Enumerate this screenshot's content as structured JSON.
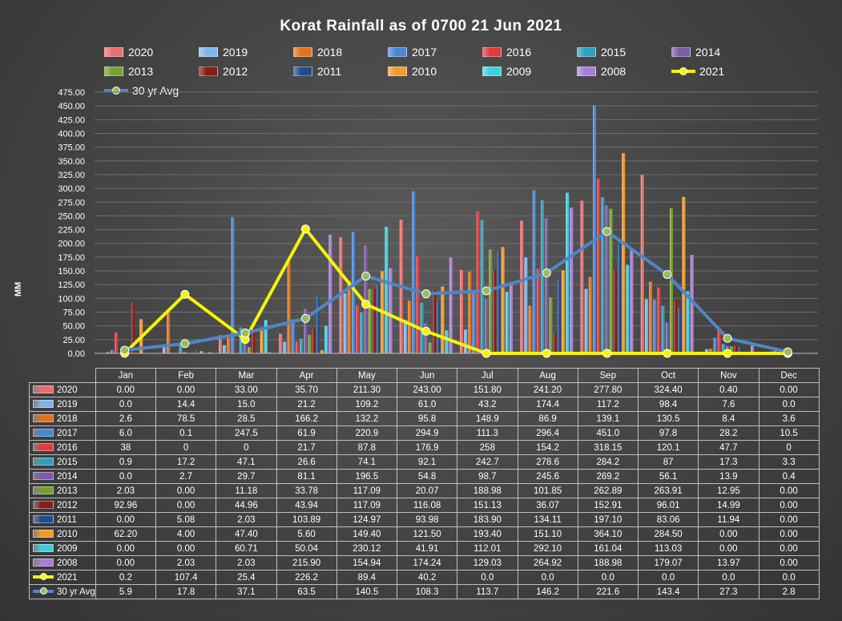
{
  "chart_data": {
    "type": "bar",
    "title": "Korat Rainfall as of 0700 21 Jun 2021",
    "ylabel": "MM",
    "xlabel": "",
    "ylim": [
      0,
      475
    ],
    "yticks": [
      "475.00",
      "450.00",
      "425.00",
      "400.00",
      "375.00",
      "350.00",
      "325.00",
      "300.00",
      "275.00",
      "250.00",
      "225.00",
      "200.00",
      "175.00",
      "150.00",
      "125.00",
      "100.00",
      "75.00",
      "50.00",
      "25.00",
      "0.00"
    ],
    "categories": [
      "Jan",
      "Feb",
      "Mar",
      "Apr",
      "May",
      "Jun",
      "Jul",
      "Aug",
      "Sep",
      "Oct",
      "Nov",
      "Dec"
    ],
    "grid": true,
    "legend_position": "top",
    "series": [
      {
        "name": "2020",
        "kind": "bar",
        "color": "#e8706f",
        "display": [
          "0.00",
          "0.00",
          "33.00",
          "35.70",
          "211.30",
          "243.00",
          "151.80",
          "241.20",
          "277.80",
          "324.40",
          "0.40",
          "0.00"
        ],
        "values": [
          0,
          0,
          33,
          35.7,
          211.3,
          243,
          151.8,
          241.2,
          277.8,
          324.4,
          0.4,
          0
        ]
      },
      {
        "name": "2019",
        "kind": "bar",
        "color": "#7fb5ea",
        "display": [
          "0.0",
          "14.4",
          "15.0",
          "21.2",
          "109.2",
          "61.0",
          "43.2",
          "174.4",
          "117.2",
          "98.4",
          "7.6",
          "0.0"
        ],
        "values": [
          0,
          14.4,
          15,
          21.2,
          109.2,
          61,
          43.2,
          174.4,
          117.2,
          98.4,
          7.6,
          0
        ]
      },
      {
        "name": "2018",
        "kind": "bar",
        "color": "#e2731c",
        "display": [
          "2.6",
          "78.5",
          "28.5",
          "166.2",
          "132.2",
          "95.8",
          "148.9",
          "86.9",
          "139.1",
          "130.5",
          "8.4",
          "3.6"
        ],
        "values": [
          2.6,
          78.5,
          28.5,
          166.2,
          132.2,
          95.8,
          148.9,
          86.9,
          139.1,
          130.5,
          8.4,
          3.6
        ]
      },
      {
        "name": "2017",
        "kind": "bar",
        "color": "#4a86d6",
        "display": [
          "6.0",
          "0.1",
          "247.5",
          "61.9",
          "220.9",
          "294.9",
          "111.3",
          "296.4",
          "451.0",
          "97.8",
          "28.2",
          "10.5"
        ],
        "values": [
          6,
          0.1,
          247.5,
          61.9,
          220.9,
          294.9,
          111.3,
          296.4,
          451,
          97.8,
          28.2,
          10.5
        ]
      },
      {
        "name": "2016",
        "kind": "bar",
        "color": "#e0393e",
        "display": [
          "38",
          "0",
          "0",
          "21.7",
          "87.8",
          "176.9",
          "258",
          "154.2",
          "318.15",
          "120.1",
          "47.7",
          "0"
        ],
        "values": [
          38,
          0,
          0,
          21.7,
          87.8,
          176.9,
          258,
          154.2,
          318.15,
          120.1,
          47.7,
          0
        ]
      },
      {
        "name": "2015",
        "kind": "bar",
        "color": "#2ea0b8",
        "display": [
          "0.9",
          "17.2",
          "47.1",
          "26.6",
          "74.1",
          "92.1",
          "242.7",
          "278.6",
          "284.2",
          "87",
          "17.3",
          "3.3"
        ],
        "values": [
          0.9,
          17.2,
          47.1,
          26.6,
          74.1,
          92.1,
          242.7,
          278.6,
          284.2,
          87,
          17.3,
          3.3
        ]
      },
      {
        "name": "2014",
        "kind": "bar",
        "color": "#7d5ba6",
        "display": [
          "0.0",
          "2.7",
          "29.7",
          "81.1",
          "196.5",
          "54.8",
          "98.7",
          "245.6",
          "269.2",
          "56.1",
          "13.9",
          "0.4"
        ],
        "values": [
          0,
          2.7,
          29.7,
          81.1,
          196.5,
          54.8,
          98.7,
          245.6,
          269.2,
          56.1,
          13.9,
          0.4
        ]
      },
      {
        "name": "2013",
        "kind": "bar",
        "color": "#77a033",
        "display": [
          "2.03",
          "0.00",
          "11.18",
          "33.78",
          "117.09",
          "20.07",
          "188.98",
          "101.85",
          "262.89",
          "263.91",
          "12.95",
          "0.00"
        ],
        "values": [
          2.03,
          0,
          11.18,
          33.78,
          117.09,
          20.07,
          188.98,
          101.85,
          262.89,
          263.91,
          12.95,
          0
        ]
      },
      {
        "name": "2012",
        "kind": "bar",
        "color": "#8b1a1a",
        "display": [
          "92.96",
          "0.00",
          "44.96",
          "43.94",
          "117.09",
          "116.08",
          "151.13",
          "36.07",
          "152.91",
          "96.01",
          "14.99",
          "0.00"
        ],
        "values": [
          92.96,
          0,
          44.96,
          43.94,
          117.09,
          116.08,
          151.13,
          36.07,
          152.91,
          96.01,
          14.99,
          0
        ]
      },
      {
        "name": "2011",
        "kind": "bar",
        "color": "#1f4e8c",
        "display": [
          "0.00",
          "5.08",
          "2.03",
          "103.89",
          "124.97",
          "93.98",
          "183.90",
          "134.11",
          "197.10",
          "83.06",
          "11.94",
          "0.00"
        ],
        "values": [
          0,
          5.08,
          2.03,
          103.89,
          124.97,
          93.98,
          183.9,
          134.11,
          197.1,
          83.06,
          11.94,
          0
        ]
      },
      {
        "name": "2010",
        "kind": "bar",
        "color": "#f39a2a",
        "display": [
          "62.20",
          "4.00",
          "47.40",
          "5.60",
          "149.40",
          "121.50",
          "193.40",
          "151.10",
          "364.10",
          "284.50",
          "0.00",
          "0.00"
        ],
        "values": [
          62.2,
          4,
          47.4,
          5.6,
          149.4,
          121.5,
          193.4,
          151.1,
          364.1,
          284.5,
          0,
          0
        ]
      },
      {
        "name": "2009",
        "kind": "bar",
        "color": "#3ed0de",
        "display": [
          "0.00",
          "0.00",
          "60.71",
          "50.04",
          "230.12",
          "41.91",
          "112.01",
          "292.10",
          "161.04",
          "113.03",
          "0.00",
          "0.00"
        ],
        "values": [
          0,
          0,
          60.71,
          50.04,
          230.12,
          41.91,
          112.01,
          292.1,
          161.04,
          113.03,
          0,
          0
        ]
      },
      {
        "name": "2008",
        "kind": "bar",
        "color": "#a87ed8",
        "display": [
          "0.00",
          "2.03",
          "2.03",
          "215.90",
          "154.94",
          "174.24",
          "129.03",
          "264.92",
          "188.98",
          "179.07",
          "13.97",
          "0.00"
        ],
        "values": [
          0,
          2.03,
          2.03,
          215.9,
          154.94,
          174.24,
          129.03,
          264.92,
          188.98,
          179.07,
          13.97,
          0
        ]
      },
      {
        "name": "2021",
        "kind": "line",
        "color": "#f5f500",
        "marker_color": "#f5f500",
        "display": [
          "0.2",
          "107.4",
          "25.4",
          "226.2",
          "89.4",
          "40.2",
          "0.0",
          "0.0",
          "0.0",
          "0.0",
          "0.0",
          "0.0"
        ],
        "values": [
          0.2,
          107.4,
          25.4,
          226.2,
          89.4,
          40.2,
          0,
          0,
          0,
          0,
          0,
          0
        ]
      },
      {
        "name": "30 yr Avg",
        "kind": "line",
        "color": "#4f86c6",
        "marker_color": "#9bbb59",
        "display": [
          "5.9",
          "17.8",
          "37.1",
          "63.5",
          "140.5",
          "108.3",
          "113.7",
          "146.2",
          "221.6",
          "143.4",
          "27.3",
          "2.8"
        ],
        "values": [
          5.9,
          17.8,
          37.1,
          63.5,
          140.5,
          108.3,
          113.7,
          146.2,
          221.6,
          143.4,
          27.3,
          2.8
        ]
      }
    ]
  }
}
